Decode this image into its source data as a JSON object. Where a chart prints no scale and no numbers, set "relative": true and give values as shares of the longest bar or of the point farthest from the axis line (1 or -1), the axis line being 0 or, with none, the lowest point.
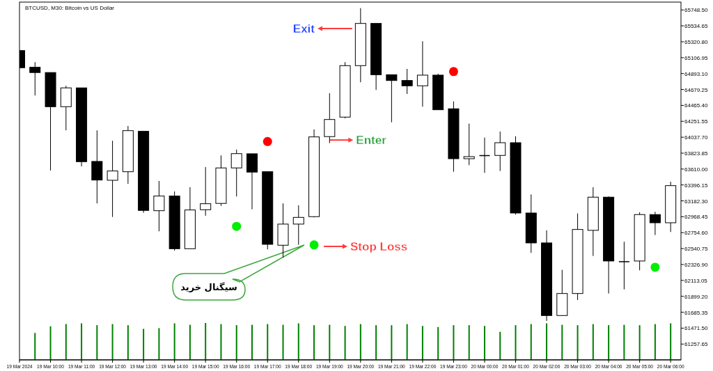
{
  "chart_data": [
    {
      "type": "candlestick",
      "title": "BTCUSD, M30:  Bitcoin vs US Dollar",
      "x": [
        "2024-03-19T09:00",
        "2024-03-19T09:30",
        "2024-03-19T10:00",
        "2024-03-19T10:30",
        "2024-03-19T11:00",
        "2024-03-19T11:30",
        "2024-03-19T12:00",
        "2024-03-19T12:30",
        "2024-03-19T13:00",
        "2024-03-19T13:30",
        "2024-03-19T14:00",
        "2024-03-19T14:30",
        "2024-03-19T15:00",
        "2024-03-19T15:30",
        "2024-03-19T16:00",
        "2024-03-19T16:30",
        "2024-03-19T17:00",
        "2024-03-19T17:30",
        "2024-03-19T18:00",
        "2024-03-19T18:30",
        "2024-03-19T19:00",
        "2024-03-19T19:30",
        "2024-03-19T20:00",
        "2024-03-19T20:30",
        "2024-03-19T21:00",
        "2024-03-19T21:30",
        "2024-03-19T22:00",
        "2024-03-19T22:30",
        "2024-03-19T23:00",
        "2024-03-19T23:30",
        "2024-03-20T00:00",
        "2024-03-20T00:30",
        "2024-03-20T01:00",
        "2024-03-20T01:30",
        "2024-03-20T02:00",
        "2024-03-20T02:30",
        "2024-03-20T03:00",
        "2024-03-20T03:30",
        "2024-03-20T04:00",
        "2024-03-20T04:30",
        "2024-03-20T05:00",
        "2024-03-20T05:30",
        "2024-03-20T06:00"
      ],
      "ohlc": [
        [
          65202,
          65209,
          64965,
          64972
        ],
        [
          64978,
          65047,
          64598,
          64907
        ],
        [
          64907,
          64907,
          63590,
          64448
        ],
        [
          64448,
          64729,
          64130,
          64701
        ],
        [
          64701,
          64701,
          63646,
          63709
        ],
        [
          63712,
          64130,
          63148,
          63462
        ],
        [
          63459,
          63990,
          62966,
          63584
        ],
        [
          63574,
          64189,
          63410,
          64126
        ],
        [
          64117,
          64117,
          63022,
          63054
        ],
        [
          63050,
          63450,
          62773,
          63247
        ],
        [
          63247,
          63309,
          62514,
          62539
        ],
        [
          62539,
          63366,
          62539,
          63060
        ],
        [
          63063,
          63637,
          62982,
          63144
        ],
        [
          63148,
          63793,
          63116,
          63625
        ],
        [
          63625,
          63871,
          63241,
          63817
        ],
        [
          63815,
          63815,
          63069,
          63569
        ],
        [
          63574,
          63574,
          62530,
          62598
        ],
        [
          62586,
          63148,
          62421,
          62870
        ],
        [
          62870,
          63122,
          62592,
          62960
        ],
        [
          62970,
          64142,
          62960,
          64042
        ],
        [
          64046,
          64629,
          63958,
          64276
        ],
        [
          64308,
          65047,
          64292,
          65000
        ],
        [
          65000,
          65773,
          64776,
          65567
        ],
        [
          65567,
          65567,
          64673,
          64878
        ],
        [
          64878,
          64878,
          64238,
          64800
        ],
        [
          64800,
          64956,
          64619,
          64729
        ],
        [
          64729,
          65328,
          64448,
          64872
        ],
        [
          64872,
          64891,
          64407,
          64407
        ],
        [
          64420,
          64519,
          63574,
          63749
        ],
        [
          63749,
          64220,
          63662,
          63777
        ],
        [
          63793,
          64033,
          63559,
          63793
        ],
        [
          63793,
          64114,
          63584,
          63964
        ],
        [
          63964,
          64051,
          62998,
          63019
        ],
        [
          63019,
          63269,
          62483,
          62617
        ],
        [
          62617,
          62786,
          61569,
          61641
        ],
        [
          61641,
          62255,
          61641,
          61937
        ],
        [
          61937,
          63013,
          61850,
          62798
        ],
        [
          62786,
          63366,
          62442,
          63232
        ],
        [
          63232,
          63241,
          61937,
          62374
        ],
        [
          62367,
          62633,
          61993,
          62367
        ],
        [
          62374,
          63029,
          62249,
          62998
        ],
        [
          62998,
          63035,
          62723,
          62888
        ],
        [
          62888,
          63440,
          62764,
          63387
        ]
      ],
      "series": [
        {
          "type": "scatter",
          "marker": "circle",
          "color": "#ff0000",
          "x": [
            "2024-03-19T17:00",
            "2024-03-19T23:00"
          ],
          "values": [
            63980,
            64920
          ]
        },
        {
          "type": "scatter",
          "marker": "circle",
          "color": "#00ee00",
          "x": [
            "2024-03-19T16:00",
            "2024-03-19T18:30",
            "2024-03-20T05:30"
          ],
          "values": [
            62840,
            62590,
            62290
          ]
        }
      ],
      "annotations": [
        "Exit",
        {
          "text": "Enter",
          "x": "2024-03-19T19:00",
          "y": 64000
        },
        "Stop Loss",
        "سیگنال خرید"
      ],
      "tick_labels": "y",
      "xlim": [
        "2024-03-19T09:00",
        "2024-03-20T06:20"
      ],
      "ylim": [
        61045,
        65854
      ],
      "yticks": [
        {
          "value": 65748.5,
          "label": "65748.50"
        },
        {
          "value": 65534.65,
          "label": "65534.65"
        },
        {
          "value": 65320.8,
          "label": "65320.80"
        },
        {
          "value": 65106.95,
          "label": "65106.95"
        },
        {
          "value": 64893.1,
          "label": "64893.10"
        },
        {
          "value": 64679.25,
          "label": "64679.25"
        },
        {
          "value": 64465.4,
          "label": "64465.40"
        },
        {
          "value": 64251.55,
          "label": "64251.55"
        },
        {
          "value": 64037.7,
          "label": "64037.70"
        },
        {
          "value": 63823.85,
          "label": "63823.85"
        },
        {
          "value": 63610,
          "label": "63610.00"
        },
        {
          "value": 63396.15,
          "label": "63396.15"
        },
        {
          "value": 63182.3,
          "label": "63182.30"
        },
        {
          "value": 62968.45,
          "label": "62968.45"
        },
        {
          "value": 62754.6,
          "label": "62754.60"
        },
        {
          "value": 62540.75,
          "label": "62540.75"
        },
        {
          "value": 62326.9,
          "label": "62326.90"
        },
        {
          "value": 62113.05,
          "label": "62113.05"
        },
        {
          "value": 61899.2,
          "label": "61899.20"
        },
        {
          "value": 61685.35,
          "label": "61685.35"
        },
        {
          "value": 61471.5,
          "label": "61471.50"
        },
        {
          "value": 61257.65,
          "label": "61257.65"
        }
      ]
    },
    {
      "type": "bar",
      "relative": true,
      "color": "#008000",
      "x": [
        "2024-03-19T09:30",
        "2024-03-19T10:00",
        "2024-03-19T10:30",
        "2024-03-19T11:00",
        "2024-03-19T11:30",
        "2024-03-19T12:00",
        "2024-03-19T12:30",
        "2024-03-19T13:00",
        "2024-03-19T13:30",
        "2024-03-19T14:00",
        "2024-03-19T14:30",
        "2024-03-19T15:00",
        "2024-03-19T15:30",
        "2024-03-19T16:00",
        "2024-03-19T16:30",
        "2024-03-19T17:00",
        "2024-03-19T17:30",
        "2024-03-19T18:00",
        "2024-03-19T18:30",
        "2024-03-19T19:00",
        "2024-03-19T19:30",
        "2024-03-19T20:00",
        "2024-03-19T20:30",
        "2024-03-19T21:00",
        "2024-03-19T21:30",
        "2024-03-19T22:00",
        "2024-03-19T22:30",
        "2024-03-19T23:00",
        "2024-03-19T23:30",
        "2024-03-20T00:00",
        "2024-03-20T00:30",
        "2024-03-20T01:00",
        "2024-03-20T01:30",
        "2024-03-20T02:00",
        "2024-03-20T02:30",
        "2024-03-20T03:00",
        "2024-03-20T03:30",
        "2024-03-20T04:00",
        "2024-03-20T04:30",
        "2024-03-20T05:00",
        "2024-03-20T05:30",
        "2024-03-20T06:00"
      ],
      "xlim": [
        "2024-03-19T09:00",
        "2024-03-20T06:20"
      ],
      "xticks": [
        {
          "value": "2024-03-19T09:00",
          "label": "19 Mar 2024"
        },
        {
          "value": "2024-03-19T10:00",
          "label": "19 Mar 10:00"
        },
        {
          "value": "2024-03-19T11:00",
          "label": "19 Mar 11:00"
        },
        {
          "value": "2024-03-19T12:00",
          "label": "19 Mar 12:00"
        },
        {
          "value": "2024-03-19T13:00",
          "label": "19 Mar 13:00"
        },
        {
          "value": "2024-03-19T14:00",
          "label": "19 Mar 14:00"
        },
        {
          "value": "2024-03-19T15:00",
          "label": "19 Mar 15:00"
        },
        {
          "value": "2024-03-19T16:00",
          "label": "19 Mar 16:00"
        },
        {
          "value": "2024-03-19T17:00",
          "label": "19 Mar 17:00"
        },
        {
          "value": "2024-03-19T18:00",
          "label": "19 Mar 18:00"
        },
        {
          "value": "2024-03-19T19:00",
          "label": "19 Mar 19:00"
        },
        {
          "value": "2024-03-19T20:00",
          "label": "19 Mar 20:00"
        },
        {
          "value": "2024-03-19T21:00",
          "label": "19 Mar 21:00"
        },
        {
          "value": "2024-03-19T22:00",
          "label": "19 Mar 22:00"
        },
        {
          "value": "2024-03-19T23:00",
          "label": "19 Mar 23:00"
        },
        {
          "value": "2024-03-20T00:00",
          "label": "20 Mar 00:00"
        },
        {
          "value": "2024-03-20T01:00",
          "label": "20 Mar 01:00"
        },
        {
          "value": "2024-03-20T02:00",
          "label": "20 Mar 02:00"
        },
        {
          "value": "2024-03-20T03:00",
          "label": "20 Mar 03:00"
        },
        {
          "value": "2024-03-20T04:00",
          "label": "20 Mar 04:00"
        },
        {
          "value": "2024-03-20T05:00",
          "label": "20 Mar 05:00"
        },
        {
          "value": "2024-03-20T06:00",
          "label": "20 Mar 06:00"
        }
      ],
      "values": [
        0.73,
        0.91,
        0.97,
        0.99,
        0.94,
        0.97,
        0.94,
        0.84,
        0.86,
        0.99,
        0.95,
        1,
        0.97,
        0.94,
        0.95,
        0.97,
        0.95,
        0.99,
        0.94,
        0.95,
        0.92,
        0.97,
        0.94,
        0.94,
        0.97,
        0.92,
        0.89,
        0.94,
        0.94,
        0.92,
        0.76,
        0.94,
        0.97,
        0.99,
        0.95,
        0.94,
        0.97,
        0.94,
        0.95,
        0.94,
        0.97,
        0.99
      ]
    }
  ]
}
